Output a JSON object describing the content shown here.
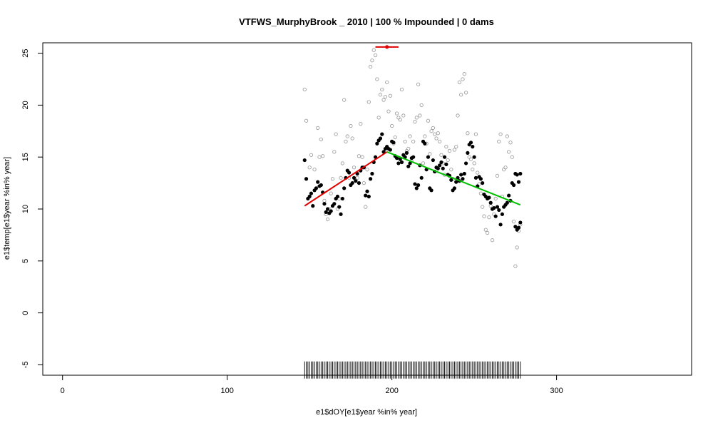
{
  "chart_data": {
    "type": "scatter",
    "title": "VTFWS_MurphyBrook _ 2010   |   100  % Impounded |  0  dams",
    "xlabel": "e1$dOY[e1$year %in% year]",
    "ylabel": "e1$temp[e1$year %in% year]",
    "xlim": [
      -12,
      382
    ],
    "ylim": [
      -6,
      26
    ],
    "xticks": [
      0,
      100,
      200,
      300
    ],
    "yticks": [
      -5,
      0,
      5,
      10,
      15,
      20,
      25
    ],
    "grid": false,
    "legend": "none",
    "colors": {
      "daily_mean": "#000000",
      "daily_max": "#a0a0a0",
      "rising_fit": "#e00000",
      "falling_fit": "#00c000",
      "breakpoint": "#e00000"
    },
    "series": [
      {
        "kind": "points",
        "style": "filled",
        "x": [
          147,
          148,
          149,
          150,
          151,
          152,
          153,
          154,
          155,
          156,
          157,
          158,
          159,
          160,
          161,
          162,
          163,
          164,
          165,
          166,
          167,
          168,
          169,
          170,
          171,
          172,
          173,
          174,
          175,
          176,
          177,
          178,
          179,
          180,
          181,
          182,
          183,
          184,
          185,
          186,
          187,
          188,
          189,
          190,
          191,
          192,
          193,
          194,
          195,
          196,
          197,
          198,
          199,
          200,
          201,
          202,
          203,
          204,
          205,
          206,
          207,
          208,
          209,
          210,
          211,
          212,
          213,
          214,
          215,
          216,
          217,
          218,
          219,
          220,
          221,
          222,
          223,
          224,
          225,
          226,
          227,
          228,
          229,
          230,
          231,
          232,
          233,
          234,
          235,
          236,
          237,
          238,
          239,
          240,
          241,
          242,
          243,
          244,
          245,
          246,
          247,
          248,
          249,
          250,
          251,
          252,
          253,
          254,
          255,
          256,
          257,
          258,
          259,
          260,
          261,
          262,
          263,
          264,
          265,
          266,
          267,
          268,
          269,
          270,
          271,
          272,
          273,
          274,
          275,
          276,
          277,
          278
        ],
        "y": [
          14.7,
          12.9,
          11.0,
          11.2,
          11.5,
          10.3,
          11.8,
          12.0,
          12.6,
          12.2,
          12.3,
          11.6,
          10.5,
          9.7,
          10.0,
          9.6,
          9.8,
          10.3,
          10.5,
          11.0,
          11.2,
          10.2,
          9.5,
          11.0,
          12.0,
          13.0,
          13.7,
          13.5,
          12.3,
          12.5,
          13.0,
          12.7,
          13.4,
          12.5,
          13.7,
          14.0,
          14.0,
          11.3,
          11.7,
          11.2,
          12.9,
          13.4,
          14.5,
          15.0,
          16.3,
          16.6,
          16.8,
          17.2,
          15.5,
          15.8,
          16.0,
          15.8,
          15.7,
          16.5,
          16.4,
          15.1,
          14.9,
          14.4,
          14.8,
          14.5,
          15.2,
          15.0,
          15.4,
          14.1,
          14.4,
          14.9,
          15.0,
          12.4,
          12.0,
          12.3,
          14.2,
          13.0,
          16.5,
          16.3,
          13.8,
          15.0,
          12.0,
          11.8,
          14.7,
          13.6,
          14.0,
          13.9,
          14.2,
          14.5,
          13.9,
          15.0,
          14.3,
          13.3,
          13.2,
          12.8,
          11.8,
          12.0,
          12.6,
          13.0,
          12.7,
          13.3,
          12.9,
          13.4,
          14.4,
          15.4,
          16.2,
          16.4,
          16.0,
          15.0,
          13.0,
          12.2,
          13.1,
          12.9,
          12.5,
          11.4,
          11.2,
          11.0,
          11.1,
          10.6,
          10.0,
          10.1,
          9.3,
          10.2,
          9.9,
          8.5,
          9.5,
          10.2,
          10.4,
          10.6,
          11.3,
          10.8,
          12.5,
          12.3,
          13.4,
          13.3,
          12.6,
          13.4
        ],
        "extra_points": [
          [
            275,
            8.3
          ],
          [
            276,
            8.0
          ],
          [
            277,
            8.2
          ],
          [
            278,
            8.7
          ]
        ]
      },
      {
        "kind": "points",
        "style": "open",
        "x": [
          147,
          148,
          150,
          151,
          153,
          155,
          156,
          157,
          158,
          159,
          160,
          161,
          162,
          163,
          164,
          165,
          166,
          167,
          168,
          169,
          170,
          171,
          172,
          173,
          174,
          175,
          176,
          177,
          178,
          179,
          180,
          181,
          182,
          183,
          184,
          185,
          186,
          187,
          188,
          189,
          190,
          191,
          192,
          193,
          194,
          195,
          196,
          197,
          198,
          199,
          200,
          201,
          202,
          203,
          204,
          205,
          206,
          207,
          208,
          209,
          210,
          211,
          212,
          213,
          214,
          215,
          216,
          217,
          218,
          219,
          220,
          221,
          222,
          223,
          224,
          225,
          226,
          227,
          228,
          229,
          230,
          231,
          232,
          233,
          234,
          235,
          236,
          237,
          238,
          239,
          240,
          241,
          242,
          243,
          244,
          245,
          246,
          247,
          248,
          249,
          250,
          251,
          252,
          253,
          254,
          255,
          256,
          257,
          258,
          259,
          260,
          261,
          262,
          263,
          264,
          265,
          266,
          267,
          268,
          269,
          270,
          271,
          272,
          273,
          274,
          275,
          276,
          277,
          278
        ],
        "y": [
          21.5,
          18.5,
          14.0,
          15.2,
          13.8,
          17.8,
          15.0,
          16.7,
          15.1,
          10.8,
          9.5,
          9.0,
          10.0,
          11.5,
          12.9,
          15.5,
          17.2,
          10.0,
          11.0,
          13.0,
          14.4,
          20.5,
          16.5,
          17.0,
          13.0,
          18.0,
          16.8,
          14.0,
          12.8,
          13.0,
          15.1,
          18.2,
          15.0,
          12.5,
          10.2,
          13.8,
          20.3,
          23.7,
          24.3,
          25.3,
          24.8,
          22.5,
          18.8,
          21.0,
          21.5,
          20.5,
          20.8,
          22.2,
          19.4,
          20.9,
          18.0,
          16.3,
          16.9,
          19.2,
          18.8,
          18.6,
          21.5,
          19.0,
          16.5,
          15.6,
          15.8,
          17.0,
          14.6,
          16.5,
          18.4,
          18.8,
          22.0,
          19.0,
          20.0,
          14.4,
          17.0,
          16.3,
          18.5,
          15.3,
          17.5,
          17.8,
          17.2,
          16.8,
          17.3,
          16.5,
          15.2,
          14.4,
          13.3,
          16.0,
          14.7,
          15.6,
          13.8,
          12.9,
          15.7,
          16.0,
          19.0,
          22.2,
          21.0,
          22.5,
          23.0,
          21.2,
          17.3,
          15.0,
          14.8,
          13.8,
          14.4,
          17.2,
          13.5,
          12.4,
          11.5,
          10.2,
          9.3,
          8.0,
          7.7,
          9.2,
          10.3,
          7.0,
          9.5,
          11.0,
          13.2,
          16.5,
          17.2,
          11.2,
          13.8,
          14.0,
          17.0,
          15.5,
          16.4,
          15.0,
          8.8,
          4.5,
          6.3,
          7.9,
          8.5
        ]
      }
    ],
    "fit_lines": [
      {
        "name": "",
        "x": [
          147,
          197
        ],
        "y": [
          10.3,
          15.5
        ]
      },
      {
        "name": "",
        "x": [
          197,
          278
        ],
        "y": [
          15.5,
          10.4
        ]
      }
    ],
    "breakpoint": {
      "x": 197,
      "y": 25.6,
      "ci": [
        190,
        204
      ]
    },
    "rug": {
      "y": -5.5,
      "x_start": 147,
      "x_end": 278
    }
  }
}
